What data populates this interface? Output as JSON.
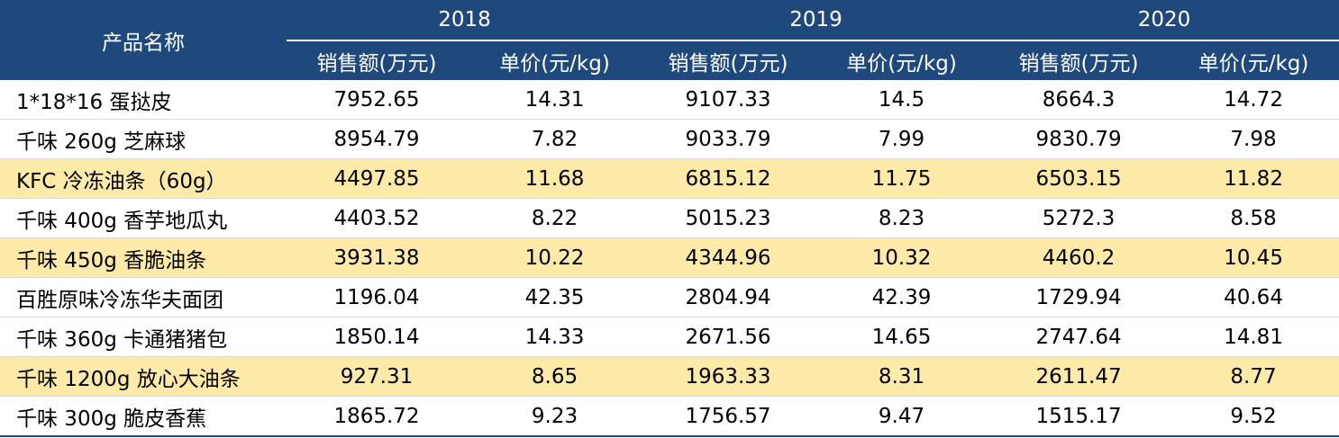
{
  "table": {
    "name_header": "产品名称",
    "years": [
      "2018",
      "2019",
      "2020"
    ],
    "sub_headers": [
      "销售额(万元)",
      "单价(元/kg)"
    ],
    "rows": [
      {
        "name": "1*18*16 蛋挞皮",
        "highlight": false,
        "values": [
          "7952.65",
          "14.31",
          "9107.33",
          "14.5",
          "8664.3",
          "14.72"
        ]
      },
      {
        "name": "千味 260g 芝麻球",
        "highlight": false,
        "values": [
          "8954.79",
          "7.82",
          "9033.79",
          "7.99",
          "9830.79",
          "7.98"
        ]
      },
      {
        "name": "KFC 冷冻油条（60g）",
        "highlight": true,
        "values": [
          "4497.85",
          "11.68",
          "6815.12",
          "11.75",
          "6503.15",
          "11.82"
        ]
      },
      {
        "name": "千味 400g 香芋地瓜丸",
        "highlight": false,
        "values": [
          "4403.52",
          "8.22",
          "5015.23",
          "8.23",
          "5272.3",
          "8.58"
        ]
      },
      {
        "name": "千味 450g 香脆油条",
        "highlight": true,
        "values": [
          "3931.38",
          "10.22",
          "4344.96",
          "10.32",
          "4460.2",
          "10.45"
        ]
      },
      {
        "name": "百胜原味冷冻华夫面团",
        "highlight": false,
        "values": [
          "1196.04",
          "42.35",
          "2804.94",
          "42.39",
          "1729.94",
          "40.64"
        ]
      },
      {
        "name": "千味 360g 卡通猪猪包",
        "highlight": false,
        "values": [
          "1850.14",
          "14.33",
          "2671.56",
          "14.65",
          "2747.64",
          "14.81"
        ]
      },
      {
        "name": "千味 1200g 放心大油条",
        "highlight": true,
        "values": [
          "927.31",
          "8.65",
          "1963.33",
          "8.31",
          "2611.47",
          "8.77"
        ]
      },
      {
        "name": "千味 300g 脆皮香蕉",
        "highlight": false,
        "values": [
          "1865.72",
          "9.23",
          "1756.57",
          "9.47",
          "1515.17",
          "9.52"
        ]
      }
    ]
  },
  "colors": {
    "header_bg": "#1f497d",
    "header_text": "#ffffff",
    "highlight_row": "#fde9a8"
  }
}
